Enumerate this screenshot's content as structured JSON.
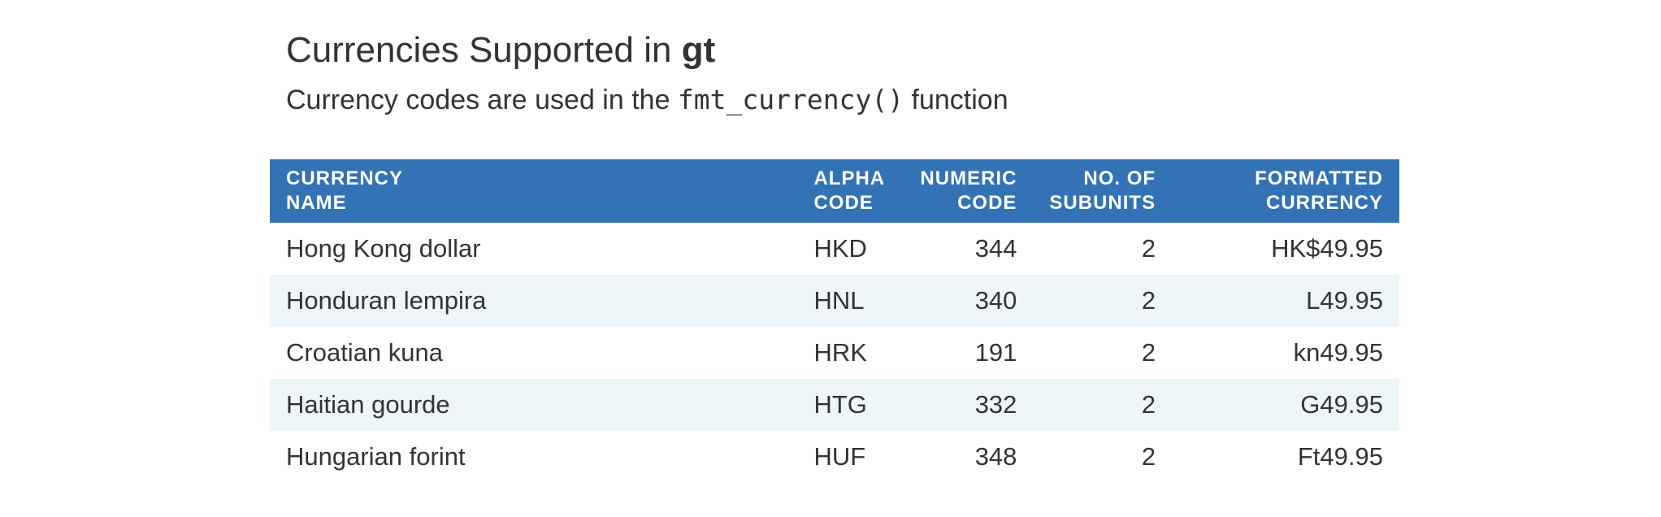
{
  "header": {
    "title_prefix": "Currencies Supported in ",
    "title_bold": "gt",
    "subtitle_prefix": "Currency codes are used in the ",
    "subtitle_code": "fmt_currency()",
    "subtitle_suffix": " function"
  },
  "table": {
    "columns": [
      "CURRENCY\nNAME",
      "ALPHA\nCODE",
      "NUMERIC\nCODE",
      "NO. OF\nSUBUNITS",
      "FORMATTED\nCURRENCY"
    ],
    "rows": [
      {
        "name": "Hong Kong dollar",
        "alpha": "HKD",
        "numeric": "344",
        "subunits": "2",
        "formatted": "HK$49.95"
      },
      {
        "name": "Honduran lempira",
        "alpha": "HNL",
        "numeric": "340",
        "subunits": "2",
        "formatted": "L49.95"
      },
      {
        "name": "Croatian kuna",
        "alpha": "HRK",
        "numeric": "191",
        "subunits": "2",
        "formatted": "kn49.95"
      },
      {
        "name": "Haitian gourde",
        "alpha": "HTG",
        "numeric": "332",
        "subunits": "2",
        "formatted": "G49.95"
      },
      {
        "name": "Hungarian forint",
        "alpha": "HUF",
        "numeric": "348",
        "subunits": "2",
        "formatted": "Ft49.95"
      }
    ]
  },
  "colors": {
    "header_bg": "#3373B5",
    "stripe_bg": "#EDF5F9",
    "text": "#333333"
  }
}
